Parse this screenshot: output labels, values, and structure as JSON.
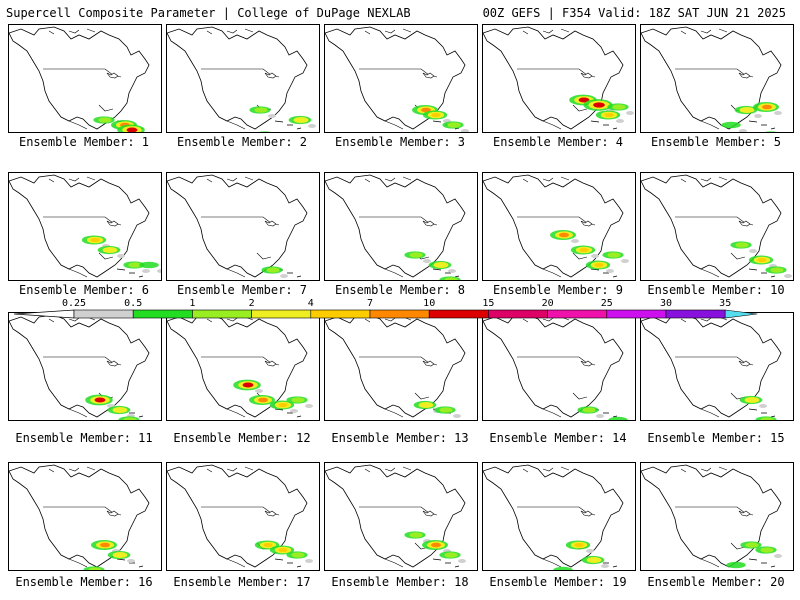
{
  "header": {
    "left": "Supercell Composite Parameter | College of DuPage NEXLAB",
    "right": "00Z GEFS | F354 Valid: 18Z SAT JUN 21 2025"
  },
  "members": [
    {
      "label": "Ensemble Member: 1",
      "blobs": [
        [
          95,
          95,
          2
        ],
        [
          115,
          100,
          5
        ],
        [
          122,
          105,
          6
        ],
        [
          105,
          115,
          3
        ]
      ]
    },
    {
      "label": "Ensemble Member: 2",
      "blobs": [
        [
          93,
          85,
          2
        ],
        [
          133,
          95,
          3
        ],
        [
          98,
          110,
          2
        ]
      ]
    },
    {
      "label": "Ensemble Member: 3",
      "blobs": [
        [
          100,
          85,
          5
        ],
        [
          110,
          90,
          4
        ],
        [
          128,
          100,
          2
        ],
        [
          90,
          110,
          1
        ]
      ]
    },
    {
      "label": "Ensemble Member: 4",
      "blobs": [
        [
          100,
          75,
          6
        ],
        [
          115,
          80,
          7
        ],
        [
          125,
          90,
          4
        ],
        [
          135,
          82,
          2
        ]
      ]
    },
    {
      "label": "Ensemble Member: 5",
      "blobs": [
        [
          105,
          85,
          3
        ],
        [
          125,
          82,
          5
        ],
        [
          130,
          110,
          2
        ],
        [
          90,
          100,
          1
        ]
      ]
    },
    {
      "label": "Ensemble Member: 6",
      "blobs": [
        [
          85,
          215,
          4
        ],
        [
          100,
          225,
          3
        ],
        [
          125,
          240,
          2
        ],
        [
          140,
          240,
          1
        ]
      ]
    },
    {
      "label": "Ensemble Member: 7",
      "blobs": [
        [
          105,
          245,
          2
        ],
        [
          125,
          260,
          2
        ],
        [
          140,
          272,
          1
        ]
      ]
    },
    {
      "label": "Ensemble Member: 8",
      "blobs": [
        [
          90,
          230,
          2
        ],
        [
          115,
          240,
          3
        ],
        [
          125,
          255,
          2
        ],
        [
          100,
          265,
          1
        ]
      ]
    },
    {
      "label": "Ensemble Member: 9",
      "blobs": [
        [
          80,
          210,
          5
        ],
        [
          100,
          225,
          4
        ],
        [
          115,
          240,
          4
        ],
        [
          130,
          230,
          2
        ]
      ]
    },
    {
      "label": "Ensemble Member: 10",
      "blobs": [
        [
          100,
          220,
          2
        ],
        [
          120,
          235,
          4
        ],
        [
          135,
          245,
          2
        ]
      ]
    },
    {
      "label": "Ensemble Member: 11",
      "blobs": [
        [
          90,
          375,
          6
        ],
        [
          110,
          385,
          3
        ],
        [
          120,
          395,
          2
        ]
      ]
    },
    {
      "label": "Ensemble Member: 12",
      "blobs": [
        [
          80,
          360,
          6
        ],
        [
          95,
          375,
          5
        ],
        [
          115,
          380,
          4
        ],
        [
          130,
          375,
          2
        ]
      ]
    },
    {
      "label": "Ensemble Member: 13",
      "blobs": [
        [
          100,
          380,
          3
        ],
        [
          120,
          385,
          2
        ],
        [
          90,
          405,
          1
        ]
      ]
    },
    {
      "label": "Ensemble Member: 14",
      "blobs": [
        [
          105,
          385,
          2
        ],
        [
          120,
          400,
          2
        ],
        [
          135,
          395,
          1
        ]
      ]
    },
    {
      "label": "Ensemble Member: 15",
      "blobs": [
        [
          110,
          375,
          3
        ],
        [
          125,
          395,
          2
        ],
        [
          95,
          410,
          1
        ]
      ]
    },
    {
      "label": "Ensemble Member: 16",
      "blobs": [
        [
          95,
          520,
          5
        ],
        [
          110,
          530,
          3
        ],
        [
          85,
          545,
          2
        ]
      ]
    },
    {
      "label": "Ensemble Member: 17",
      "blobs": [
        [
          100,
          520,
          4
        ],
        [
          115,
          525,
          4
        ],
        [
          130,
          530,
          2
        ]
      ]
    },
    {
      "label": "Ensemble Member: 18",
      "blobs": [
        [
          90,
          510,
          2
        ],
        [
          110,
          520,
          5
        ],
        [
          125,
          530,
          2
        ]
      ]
    },
    {
      "label": "Ensemble Member: 19",
      "blobs": [
        [
          95,
          520,
          4
        ],
        [
          110,
          535,
          3
        ],
        [
          125,
          550,
          2
        ],
        [
          80,
          545,
          1
        ]
      ]
    },
    {
      "label": "Ensemble Member: 20",
      "blobs": [
        [
          110,
          520,
          2
        ],
        [
          125,
          525,
          2
        ],
        [
          95,
          540,
          1
        ]
      ]
    }
  ],
  "colorbar": {
    "labels": [
      "0.25",
      "0.5",
      "1",
      "2",
      "4",
      "7",
      "10",
      "15",
      "20",
      "25",
      "30",
      "35"
    ],
    "colors": [
      "#d0d0d0",
      "#22dd22",
      "#99ee22",
      "#eeee22",
      "#ffcc00",
      "#ff8800",
      "#dd0000",
      "#dd0066",
      "#ee11aa",
      "#cc11ee",
      "#8811dd",
      "#aa77dd",
      "#55ddee"
    ]
  }
}
